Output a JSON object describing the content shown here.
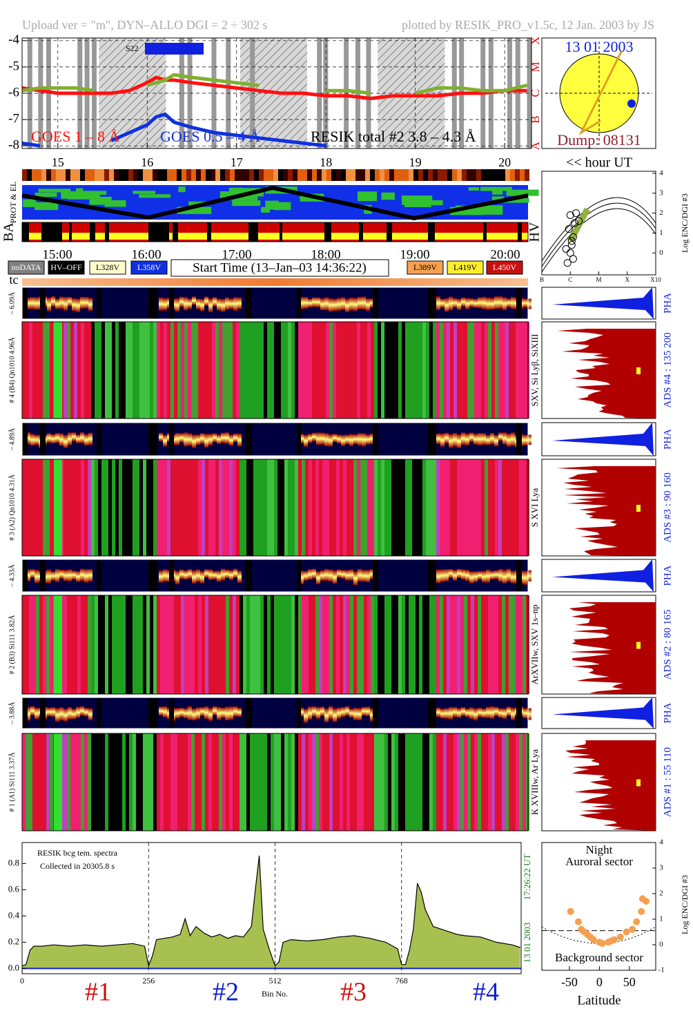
{
  "page": {
    "header_left": "Upload ver = \"m\", DYN–ALLO DGI =   2 ÷ 302 s",
    "header_right": "plotted by RESIK_PRO_v1.5c, 12 Jan. 2003 by JS",
    "s22": "S22",
    "sun_date": "13 01 2003",
    "dump": "Dump: 08131",
    "hour_ut": "<< hour UT",
    "prot_el": "PROT & EL",
    "ba": "BA",
    "hv": "HV",
    "tc": "tc",
    "time_labels": [
      "15:00",
      "16:00",
      "17:00",
      "18:00",
      "19:00",
      "20:00"
    ],
    "legend_boxes": [
      {
        "label": "noDATA",
        "color": "#808080",
        "text_color": "#ffffff"
      },
      {
        "label": "HV–OFF",
        "color": "#000000",
        "text_color": "#ffffff"
      },
      {
        "label": "L328V",
        "color": "#fffccc",
        "text_color": "#000000"
      },
      {
        "label": "L358V",
        "color": "#1030e0",
        "text_color": "#ffffff"
      },
      {
        "label": "L389V",
        "color": "#f8a050",
        "text_color": "#000000"
      },
      {
        "label": "L419V",
        "color": "#ffee30",
        "text_color": "#000000"
      },
      {
        "label": "L450V",
        "color": "#c81010",
        "text_color": "#ffffff"
      }
    ],
    "start_time": "Start Time (13–Jan–03 14:36:22)",
    "enc_axis": "Log ENC/DGI #3",
    "channels": [
      {
        "left_pha": "– 6.09Å",
        "left_main": "# 4 (B4) Qn1010 4.96Å",
        "pha": "PHA",
        "lines": "SXV, Si Lyβ, SiXIII",
        "ads": "ADS #4 :   135 200"
      },
      {
        "left_pha": "– 4.89Å",
        "left_main": "# 3 (A2) Qn1010 4.31Å",
        "pha": "PHA",
        "lines": "S XVI Lya",
        "ads": "ADS #3 :   90 160"
      },
      {
        "left_pha": "– 4.33Å",
        "left_main": "# 2 (B3) Si111 3.82Å",
        "pha": "PHA",
        "lines": "ArXVIIw, SXV 1s–np",
        "ads": "ADS #2 :   80 165"
      },
      {
        "left_pha": "– 3.88Å",
        "left_main": "# 1 (A1) Si111 3.37Å",
        "pha": "PHA",
        "lines": "K XVIIIw, Ar Lya",
        "ads": "ADS #1 :   55 110"
      }
    ],
    "spectra_title": "RESIK bcg tem. spectra",
    "spectra_collected": "Collected in 20305.8 s",
    "spectra_ut": "17:26:22 UT",
    "spectra_date": "13 01 2003",
    "bin_label": "Bin No.",
    "detectors": [
      {
        "label": "#1",
        "color": "#d01010"
      },
      {
        "label": "#2",
        "color": "#1020d0"
      },
      {
        "label": "#3",
        "color": "#d01010"
      },
      {
        "label": "#4",
        "color": "#1020d0"
      }
    ],
    "night": "Night",
    "auroral": "Auroral sector",
    "background": "Background sector",
    "latitude": "Latitude"
  },
  "chart_data": [
    {
      "type": "line",
      "x": [
        14.6,
        14.8,
        15.0,
        15.2,
        15.4,
        15.6,
        15.8,
        16.0,
        16.1,
        16.2,
        16.3,
        16.5,
        16.75,
        17.0,
        17.25,
        17.5,
        17.75,
        18.0,
        18.25,
        18.5,
        18.75,
        19.0,
        19.25,
        19.5,
        19.75,
        20.0,
        20.25
      ],
      "series": [
        {
          "name": "GOES 1 – 8 Å",
          "color": "#ff1010",
          "values": [
            -5.8,
            -5.9,
            -6.0,
            -6.0,
            -6.0,
            -6.0,
            -5.9,
            -5.6,
            -5.4,
            -5.5,
            -5.5,
            -5.6,
            -5.7,
            -5.8,
            -5.9,
            -6.0,
            -6.0,
            -6.1,
            -6.1,
            -6.2,
            -6.1,
            -6.1,
            -6.1,
            -6.0,
            -6.0,
            -5.9,
            -5.9
          ]
        },
        {
          "name": "GOES 0.5 – 4 Å",
          "color": "#1030e0",
          "values": [
            -7.9,
            -8.0,
            null,
            null,
            null,
            -7.8,
            -7.5,
            -7.2,
            -6.9,
            -6.8,
            -7.1,
            -7.3,
            -7.5,
            -7.6,
            -7.7,
            -7.8,
            -7.9,
            -8.0,
            null,
            null,
            null,
            null,
            null,
            null,
            null,
            null,
            null
          ]
        },
        {
          "name": "RESIK total #2  3.8 – 4.3 Å",
          "color": "#80b030",
          "values": [
            -5.9,
            -5.8,
            -5.8,
            -5.8,
            -5.9,
            null,
            null,
            -5.7,
            -5.6,
            -5.5,
            -5.3,
            -5.4,
            -5.5,
            -5.6,
            -5.7,
            null,
            null,
            -5.9,
            -5.9,
            -6.0,
            null,
            -6.0,
            -5.8,
            -5.8,
            -5.9,
            -5.9,
            -5.7
          ]
        }
      ],
      "xlim": [
        14.6,
        20.3
      ],
      "xticks": [
        15,
        16,
        17,
        18,
        19,
        20
      ],
      "ylim": [
        -8.1,
        -3.9
      ],
      "yticks": [
        -8,
        -7,
        -6,
        -5,
        -4
      ],
      "flare_classes": [
        "A",
        "B",
        "C",
        "M",
        "X"
      ],
      "grid": true
    },
    {
      "type": "area",
      "x": [
        0,
        8,
        16,
        24,
        40,
        64,
        96,
        128,
        160,
        192,
        224,
        248,
        256,
        264,
        272,
        288,
        304,
        320,
        330,
        340,
        352,
        368,
        384,
        400,
        416,
        432,
        448,
        464,
        472,
        480,
        488,
        500,
        512,
        520,
        528,
        544,
        576,
        608,
        640,
        672,
        704,
        736,
        760,
        768,
        776,
        784,
        792,
        800,
        808,
        816,
        832,
        848,
        864,
        880,
        896,
        928,
        960,
        992,
        1008
      ],
      "values": [
        0.02,
        0.03,
        0.14,
        0.17,
        0.17,
        0.18,
        0.17,
        0.18,
        0.17,
        0.18,
        0.19,
        0.17,
        0.02,
        0.1,
        0.22,
        0.23,
        0.24,
        0.26,
        0.38,
        0.25,
        0.32,
        0.27,
        0.24,
        0.26,
        0.23,
        0.25,
        0.24,
        0.32,
        0.6,
        0.86,
        0.3,
        0.15,
        0.02,
        0.05,
        0.2,
        0.22,
        0.21,
        0.22,
        0.24,
        0.25,
        0.23,
        0.2,
        0.15,
        0.03,
        0.03,
        0.14,
        0.3,
        0.65,
        0.58,
        0.45,
        0.32,
        0.3,
        0.28,
        0.26,
        0.25,
        0.24,
        0.2,
        0.18,
        0.16
      ],
      "color": "#a8c050",
      "xlim": [
        0,
        1010
      ],
      "xticks": [
        0,
        256,
        512,
        768
      ],
      "ylim": [
        -0.04,
        0.96
      ],
      "yticks": [
        {
          "value": 0,
          "label": "0.0"
        },
        0.2,
        0.4,
        0.6,
        0.8
      ],
      "grid": true
    },
    {
      "type": "scatter",
      "x": [
        -48,
        -35,
        -30,
        -25,
        -20,
        -15,
        -10,
        0,
        5,
        15,
        20,
        25,
        35,
        45,
        55,
        62,
        70,
        72,
        78
      ],
      "values": [
        1.3,
        0.9,
        0.6,
        0.5,
        0.4,
        0.3,
        0.2,
        0.1,
        0.05,
        0.1,
        0.15,
        0.2,
        0.3,
        0.5,
        0.6,
        0.9,
        1.3,
        1.8,
        1.7
      ],
      "color": "#f5a050",
      "xlim": [
        -96,
        94
      ],
      "xticks": [
        -50,
        0,
        50
      ],
      "ylim": [
        -1,
        4
      ],
      "yticks": [
        -1,
        0,
        1,
        2,
        3,
        4
      ]
    },
    {
      "type": "scatter",
      "x": [
        0.9,
        1.0,
        1.05,
        1.1,
        0.95,
        1.15,
        1.0,
        1.2,
        0.85,
        1.1,
        1.3,
        1.05
      ],
      "values": [
        -0.5,
        0.0,
        0.4,
        0.8,
        1.2,
        1.5,
        1.9,
        2.0,
        0.2,
        -0.3,
        1.6,
        0.6
      ],
      "color": "#000000",
      "xlim": [
        0,
        4
      ],
      "xticks": [
        {
          "value": 0,
          "label": "B"
        },
        {
          "value": 1,
          "label": "C"
        },
        {
          "value": 2,
          "label": "M"
        },
        {
          "value": 3,
          "label": "X"
        },
        {
          "value": 4,
          "label": "X10"
        }
      ],
      "ylim": [
        -1.1,
        4.1
      ],
      "yticks": [
        0,
        1,
        2,
        3,
        4
      ]
    }
  ]
}
